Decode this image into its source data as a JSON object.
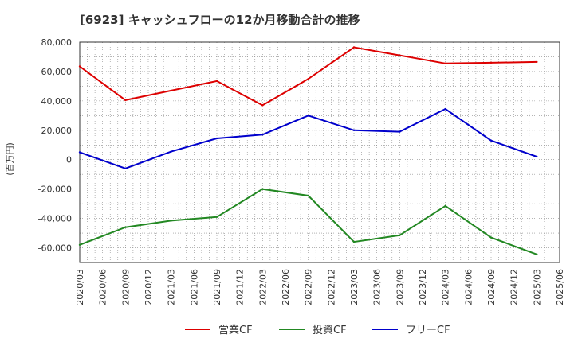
{
  "chart_data": {
    "type": "line",
    "title": "[6923]  キャッシュフローの12か月移動合計の推移",
    "ylabel": "(百万円)",
    "xlabel": "",
    "ylim": [
      -70000,
      80000
    ],
    "yticks": [
      80000,
      60000,
      40000,
      20000,
      0,
      -20000,
      -40000,
      -60000
    ],
    "ytick_labels": [
      "80,000",
      "60,000",
      "40,000",
      "20,000",
      "0",
      "-20,000",
      "-40,000",
      "-60,000"
    ],
    "x_ticks": [
      "2020/03",
      "2020/06",
      "2020/09",
      "2020/12",
      "2021/03",
      "2021/06",
      "2021/09",
      "2021/12",
      "2022/03",
      "2022/06",
      "2022/09",
      "2022/12",
      "2023/03",
      "2023/06",
      "2023/09",
      "2023/12",
      "2024/03",
      "2024/06",
      "2024/09",
      "2024/12",
      "2025/03",
      "2025/06"
    ],
    "x": [
      "2020/03",
      "2020/09",
      "2021/03",
      "2021/09",
      "2022/03",
      "2022/09",
      "2023/03",
      "2023/09",
      "2024/03",
      "2024/09",
      "2025/03"
    ],
    "grid": true,
    "legend_position": "bottom",
    "series": [
      {
        "name": "営業CF",
        "color": "#dd0000",
        "values": [
          63500,
          40500,
          47000,
          53500,
          37000,
          55000,
          76500,
          71000,
          65500,
          66000,
          66500
        ]
      },
      {
        "name": "投資CF",
        "color": "#228822",
        "values": [
          -58000,
          -46000,
          -41500,
          -39000,
          -20000,
          -24500,
          -56000,
          -51500,
          -31500,
          -53000,
          -64500
        ]
      },
      {
        "name": "フリーCF",
        "color": "#0000cc",
        "values": [
          5000,
          -6000,
          5500,
          14500,
          17000,
          30000,
          20000,
          19000,
          34500,
          13000,
          2000
        ]
      }
    ]
  }
}
